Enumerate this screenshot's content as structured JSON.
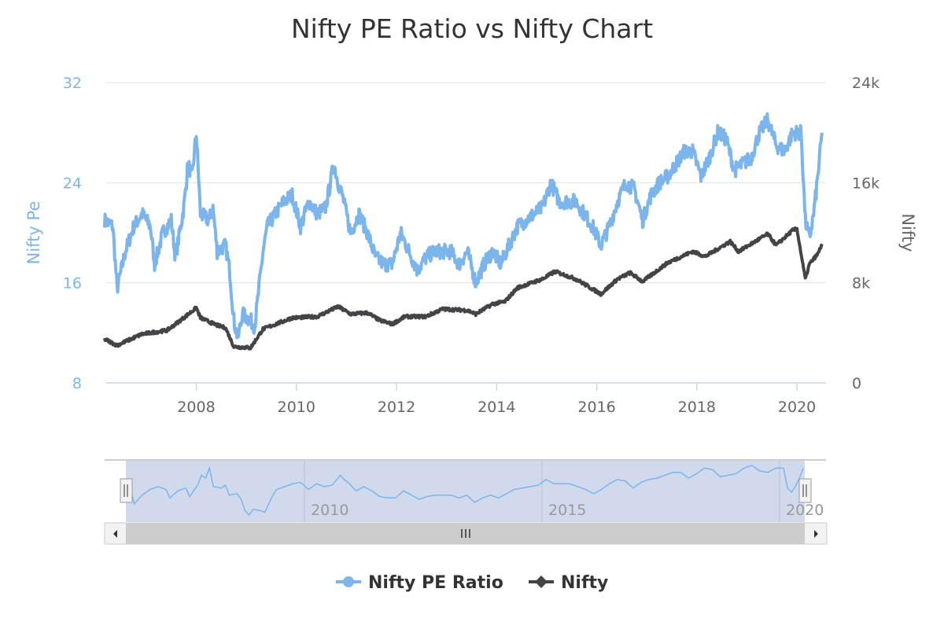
{
  "chart_data": {
    "type": "line",
    "title": "Nifty PE Ratio vs Nifty Chart",
    "x_axis": {
      "type": "datetime",
      "ticks": [
        "2008",
        "2010",
        "2012",
        "2014",
        "2016",
        "2018",
        "2020"
      ],
      "range": [
        "2006-03",
        "2020-07"
      ]
    },
    "y_axes": [
      {
        "label": "Nifty Pe",
        "side": "left",
        "range": [
          8,
          32
        ],
        "ticks": [
          "8",
          "16",
          "24",
          "32"
        ],
        "color": "#7cb5ec"
      },
      {
        "label": "Nifty",
        "side": "right",
        "range": [
          0,
          24000
        ],
        "ticks": [
          "0",
          "8k",
          "16k",
          "24k"
        ],
        "color": "#434348"
      }
    ],
    "grid": true,
    "legend": {
      "placement": "bottom-center"
    },
    "navigator": {
      "ticks": [
        "2010",
        "2015",
        "2020"
      ],
      "range": [
        "2006-03",
        "2020-07"
      ]
    },
    "series": [
      {
        "name": "Nifty PE Ratio",
        "axis": 0,
        "color": "#7cb5ec",
        "x": [
          "2006-03",
          "2006-05",
          "2006-06",
          "2006-08",
          "2006-10",
          "2006-12",
          "2007-02",
          "2007-03",
          "2007-05",
          "2007-07",
          "2007-08",
          "2007-10",
          "2007-11",
          "2007-12",
          "2008-01",
          "2008-02",
          "2008-04",
          "2008-05",
          "2008-06",
          "2008-08",
          "2008-09",
          "2008-10",
          "2008-11",
          "2008-12",
          "2009-02",
          "2009-03",
          "2009-05",
          "2009-06",
          "2009-08",
          "2009-10",
          "2009-12",
          "2010-02",
          "2010-04",
          "2010-06",
          "2010-08",
          "2010-10",
          "2010-11",
          "2010-12",
          "2011-02",
          "2011-04",
          "2011-06",
          "2011-08",
          "2011-10",
          "2011-12",
          "2012-02",
          "2012-04",
          "2012-06",
          "2012-08",
          "2012-10",
          "2012-12",
          "2013-02",
          "2013-04",
          "2013-06",
          "2013-08",
          "2013-10",
          "2013-12",
          "2014-02",
          "2014-04",
          "2014-06",
          "2014-08",
          "2014-10",
          "2014-12",
          "2015-02",
          "2015-04",
          "2015-06",
          "2015-08",
          "2015-10",
          "2015-12",
          "2016-02",
          "2016-04",
          "2016-06",
          "2016-08",
          "2016-10",
          "2016-12",
          "2017-02",
          "2017-04",
          "2017-06",
          "2017-08",
          "2017-10",
          "2017-12",
          "2018-02",
          "2018-04",
          "2018-06",
          "2018-08",
          "2018-10",
          "2018-12",
          "2019-02",
          "2019-04",
          "2019-06",
          "2019-08",
          "2019-10",
          "2019-12",
          "2020-02",
          "2020-03",
          "2020-04",
          "2020-05",
          "2020-06",
          "2020-07"
        ],
        "values": [
          21,
          20.5,
          15.5,
          18.5,
          20.5,
          21.5,
          20.5,
          17.5,
          20,
          21,
          18,
          22,
          25.5,
          24.5,
          28,
          21.5,
          21,
          22,
          18.5,
          19,
          17,
          13,
          11.5,
          13.5,
          13,
          12.5,
          18.5,
          20.5,
          21.5,
          22.5,
          23,
          20.5,
          22.5,
          21.5,
          22,
          25.5,
          24,
          23,
          20,
          21.5,
          20,
          18,
          17.5,
          17.5,
          20,
          18.5,
          17,
          18,
          18.5,
          18.5,
          18.5,
          17.5,
          18.5,
          16,
          17.5,
          18.5,
          17.5,
          19,
          20.5,
          21,
          21.5,
          22,
          24,
          22.5,
          22.5,
          22.5,
          21.5,
          20.5,
          19,
          20.5,
          22.5,
          24,
          23.5,
          21,
          23,
          24,
          24.5,
          25.5,
          26.5,
          26.5,
          24.5,
          26,
          28,
          27.5,
          25,
          25.5,
          26,
          28,
          29,
          27,
          26.5,
          28,
          28,
          21,
          19.5,
          21.5,
          24.5,
          28
        ]
      },
      {
        "name": "Nifty",
        "axis": 1,
        "color": "#434348",
        "x": [
          "2006-03",
          "2006-06",
          "2006-12",
          "2007-06",
          "2007-10",
          "2008-01",
          "2008-02",
          "2008-06",
          "2008-08",
          "2008-10",
          "2009-02",
          "2009-05",
          "2009-12",
          "2010-06",
          "2010-11",
          "2011-02",
          "2011-06",
          "2011-09",
          "2011-12",
          "2012-03",
          "2012-08",
          "2012-12",
          "2013-06",
          "2013-08",
          "2013-12",
          "2014-03",
          "2014-06",
          "2014-12",
          "2015-03",
          "2015-08",
          "2016-02",
          "2016-06",
          "2016-09",
          "2016-12",
          "2017-06",
          "2017-12",
          "2018-03",
          "2018-09",
          "2018-11",
          "2019-06",
          "2019-08",
          "2019-12",
          "2020-01",
          "2020-03",
          "2020-04",
          "2020-06",
          "2020-07"
        ],
        "values": [
          3500,
          3000,
          3900,
          4200,
          5200,
          6000,
          5200,
          4600,
          4400,
          2900,
          2800,
          4300,
          5200,
          5300,
          6100,
          5500,
          5600,
          5000,
          4700,
          5300,
          5300,
          5900,
          5800,
          5500,
          6300,
          6500,
          7600,
          8300,
          8900,
          8300,
          7100,
          8300,
          8800,
          8100,
          9600,
          10500,
          10100,
          11300,
          10500,
          11900,
          11000,
          12200,
          12300,
          8300,
          9500,
          10300,
          11100
        ]
      }
    ]
  }
}
